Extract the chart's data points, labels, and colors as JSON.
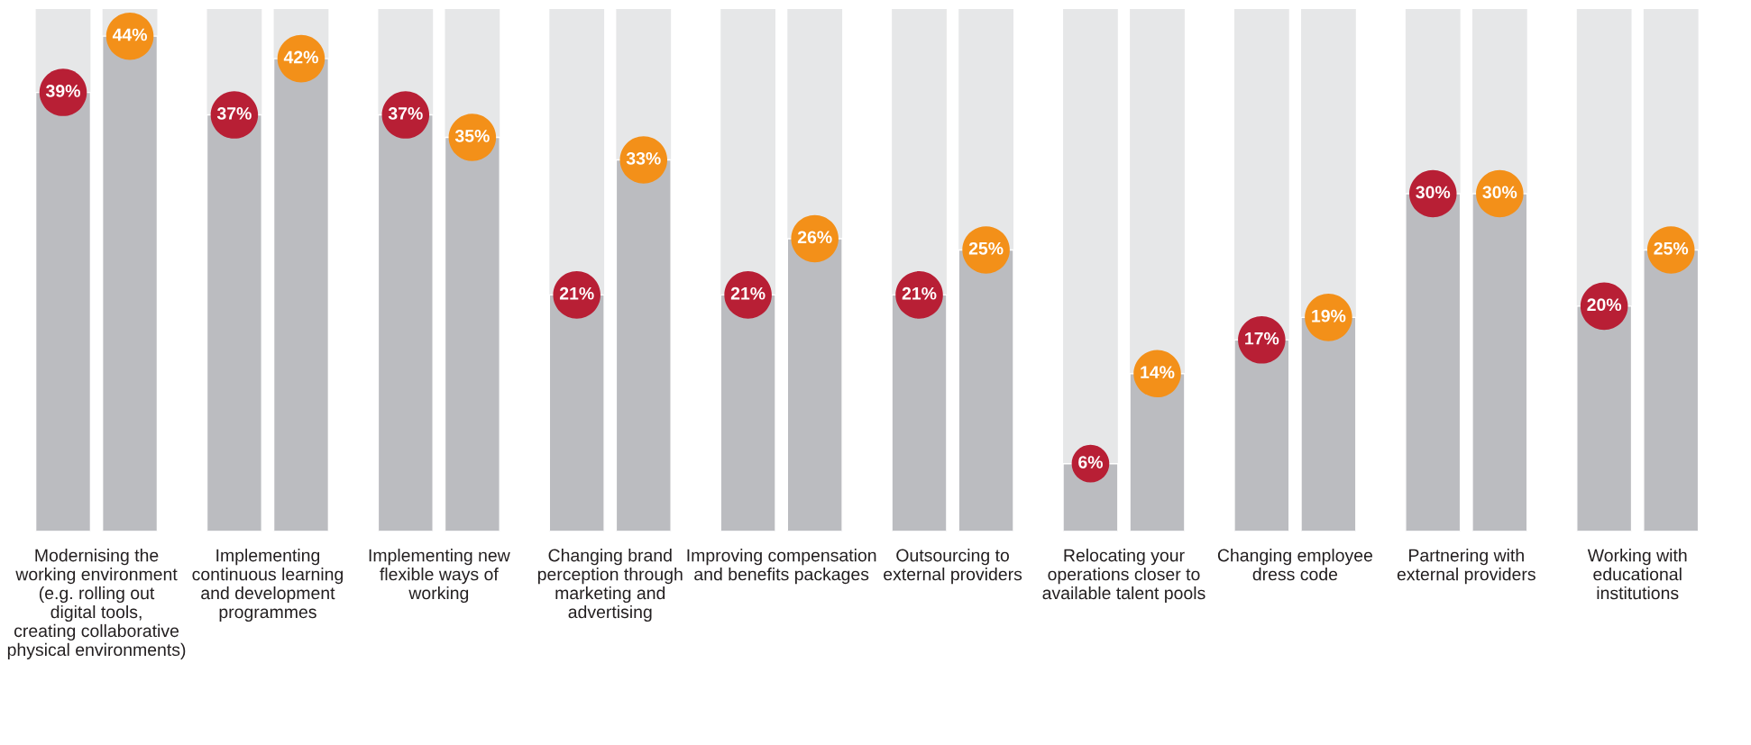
{
  "chart_data": {
    "type": "bar",
    "categories": [
      "Modernising the working environment (e.g. rolling out digital tools, creating collaborative physical environments)",
      "Implementing continuous learning and development programmes",
      "Implementing new flexible ways of working",
      "Changing brand perception through marketing and advertising",
      "Improving compensation and benefits packages",
      "Outsourcing to external providers",
      "Relocating your operations closer to available talent pools",
      "Changing employee dress code",
      "Partnering with external providers",
      "Working with educational institutions"
    ],
    "series": [
      {
        "color": "#bbbcc0",
        "values": [
          39,
          37,
          37,
          21,
          21,
          21,
          6,
          17,
          30,
          20
        ],
        "value_labels": [
          "39%",
          "37%",
          "37%",
          "21%",
          "21%",
          "21%",
          "6%",
          "17%",
          "30%",
          "20%"
        ]
      },
      {
        "color": "#bbbcc0",
        "values": [
          44,
          42,
          35,
          33,
          26,
          25,
          14,
          19,
          30,
          25
        ],
        "value_labels": [
          "44%",
          "42%",
          "35%",
          "33%",
          "26%",
          "25%",
          "14%",
          "19%",
          "30%",
          "25%"
        ]
      }
    ],
    "grid": false,
    "legend": false,
    "tick_labels": "x"
  }
}
